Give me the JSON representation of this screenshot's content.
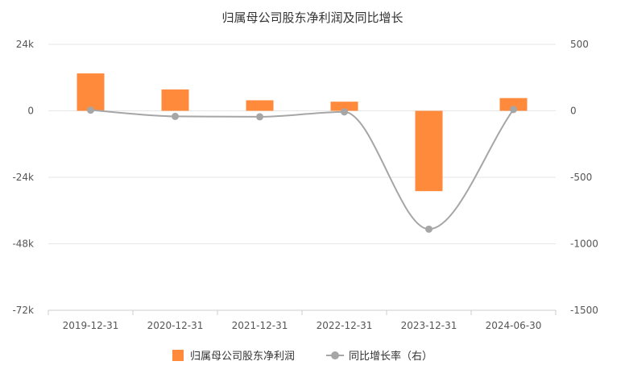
{
  "chart_data": {
    "type": "bar+line",
    "title": "归属母公司股东净利润及同比增长",
    "categories": [
      "2019-12-31",
      "2020-12-31",
      "2021-12-31",
      "2022-12-31",
      "2023-12-31",
      "2024-06-30"
    ],
    "series": [
      {
        "name": "归属母公司股东净利润",
        "type": "bar",
        "axis": "left",
        "color": "#FF8A3C",
        "values": [
          13500,
          7700,
          3800,
          3300,
          -29000,
          4600
        ]
      },
      {
        "name": "同比增长率（右）",
        "type": "line",
        "axis": "right",
        "color": "#A6A6A6",
        "values": [
          5,
          -42,
          -45,
          -8,
          -890,
          10
        ]
      }
    ],
    "y_left": {
      "min": -72000,
      "max": 24000,
      "ticks": [
        24000,
        0,
        -24000,
        -48000,
        -72000
      ],
      "tick_labels": [
        "24k",
        "0",
        "-24k",
        "-48k",
        "-72k"
      ]
    },
    "y_right": {
      "min": -1500,
      "max": 500,
      "ticks": [
        500,
        0,
        -500,
        -1000,
        -1500
      ],
      "tick_labels": [
        "500",
        "0",
        "-500",
        "-1000",
        "-1500"
      ]
    },
    "grid": true,
    "legend_position": "bottom-center"
  }
}
